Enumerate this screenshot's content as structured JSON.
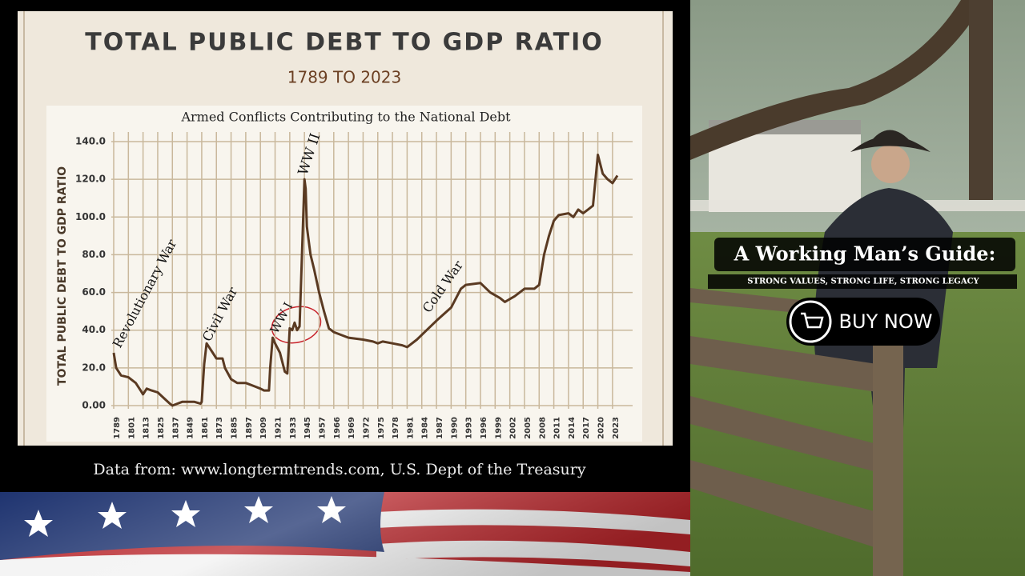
{
  "chart_data": {
    "type": "line",
    "title": "TOTAL PUBLIC DEBT TO GDP RATIO",
    "subtitle": "1789 TO 2023",
    "chart_title": "Armed Conflicts Contributing to the National Debt",
    "y_label": "TOTAL PUBLIC DEBT TO GDP RATIO",
    "source": "Data from: www.longtermtrends.com, U.S. Dept of the Treasury",
    "annotations": [
      "Revolutionary War",
      "Civil War",
      "WW I",
      "WW II",
      "Cold War"
    ],
    "x": [
      1789,
      1791,
      1795,
      1801,
      1807,
      1811,
      1813,
      1816,
      1820,
      1825,
      1830,
      1835,
      1837,
      1841,
      1845,
      1849,
      1855,
      1860,
      1861,
      1863,
      1865,
      1867,
      1870,
      1873,
      1878,
      1880,
      1885,
      1890,
      1897,
      1905,
      1909,
      1912,
      1916,
      1917,
      1919,
      1921,
      1925,
      1929,
      1931,
      1933,
      1935,
      1937,
      1939,
      1941,
      1943,
      1945,
      1946,
      1947,
      1948,
      1950,
      1953,
      1957,
      1960,
      1963,
      1966,
      1969,
      1972,
      1974,
      1975,
      1976,
      1978,
      1980,
      1981,
      1983,
      1985,
      1987,
      1990,
      1992,
      1993,
      1996,
      1998,
      2000,
      2001,
      2003,
      2005,
      2007,
      2008,
      2009,
      2010,
      2011,
      2012,
      2014,
      2015,
      2016,
      2017,
      2018,
      2019,
      2020,
      2021,
      2022,
      2023,
      2024
    ],
    "series": [
      {
        "name": "Debt to GDP",
        "color": "#5a3a22",
        "values": [
          28,
          20,
          16,
          15,
          12,
          8,
          6,
          9,
          8,
          7,
          4,
          1,
          0,
          1,
          2,
          2,
          2,
          1,
          2,
          22,
          33,
          31,
          28,
          25,
          25,
          20,
          14,
          12,
          12,
          10,
          9,
          8,
          8,
          20,
          36,
          33,
          28,
          18,
          17,
          41,
          40,
          44,
          40,
          42,
          80,
          120,
          115,
          95,
          90,
          80,
          72,
          60,
          50,
          41,
          39,
          36,
          35,
          34,
          33,
          34,
          33,
          32,
          31,
          35,
          40,
          45,
          52,
          62,
          64,
          65,
          60,
          57,
          55,
          58,
          62,
          62,
          64,
          80,
          90,
          98,
          101,
          102,
          100,
          104,
          102,
          104,
          106,
          133,
          123,
          120,
          118,
          122
        ]
      }
    ],
    "xlim": [
      1787,
      2025
    ],
    "xticks": [
      1789,
      1801,
      1813,
      1825,
      1837,
      1849,
      1861,
      1873,
      1885,
      1897,
      1909,
      1921,
      1933,
      1945,
      1957,
      1966,
      1969,
      1972,
      1975,
      1978,
      1981,
      1984,
      1987,
      1990,
      1993,
      1996,
      1999,
      2002,
      2005,
      2008,
      2011,
      2014,
      2017,
      2020,
      2023
    ],
    "ylim": [
      0,
      140
    ],
    "yticks": [
      {
        "value": 0,
        "label": "0.00"
      },
      {
        "value": 20,
        "label": "20.0"
      },
      {
        "value": 40,
        "label": "40.0"
      },
      {
        "value": 60,
        "label": "60.0"
      },
      {
        "value": 80,
        "label": "80.0"
      },
      {
        "value": 100,
        "label": "100.0"
      },
      {
        "value": 120,
        "label": "120.0"
      },
      {
        "value": 140,
        "label": "140.0"
      }
    ],
    "grid": true
  },
  "promo": {
    "title": "A Working Man’s Guide:",
    "tagline": "STRONG VALUES, STRONG LIFE, STRONG LEGACY",
    "button": "BUY NOW"
  }
}
